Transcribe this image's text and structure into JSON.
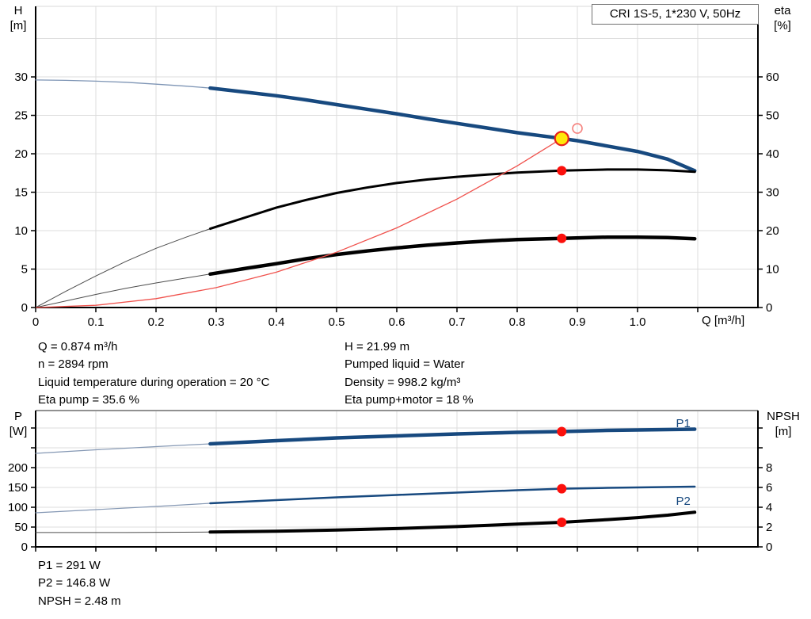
{
  "info_top_left": [
    "Q = 0.874 m³/h",
    "n = 2894 rpm",
    "Liquid temperature during operation = 20 °C",
    "Eta pump = 35.6 %"
  ],
  "info_top_right": [
    "H = 21.99 m",
    "Pumped liquid = Water",
    "Density = 998.2 kg/m³",
    "Eta pump+motor = 18 %"
  ],
  "info_bottom": [
    "P1 = 291 W",
    "P2 = 146.8 W",
    "NPSH = 2.48 m"
  ],
  "colors": {
    "curve_blue": "#17497F",
    "curve_black": "#000000",
    "system_red": "#F0524D",
    "dot_red": "#FB100C",
    "duty_yellow": "#FFE70A",
    "duty_ring_red": "#E8211B",
    "grid": "#DCDCDC",
    "axis": "#000000"
  },
  "chart_data": [
    {
      "type": "line",
      "title": "CRI 1S-5, 1*230 V, 50Hz",
      "x_axis": {
        "label": "Q [m³/h]",
        "lim": [
          0,
          1.2
        ],
        "tick_positions": [
          0,
          0.1,
          0.2,
          0.3,
          0.4,
          0.5,
          0.6,
          0.7,
          0.8,
          0.9,
          1.0,
          1.1
        ],
        "tick_labels": [
          "0",
          "0.1",
          "0.2",
          "0.3",
          "0.4",
          "0.5",
          "0.6",
          "0.7",
          "0.8",
          "0.9",
          "1.0"
        ]
      },
      "left_axis": {
        "name": "H",
        "unit": "[m]",
        "lim": [
          0,
          39.18
        ],
        "grid": [
          5,
          10,
          15,
          20,
          25,
          30,
          35
        ],
        "tick_positions": [
          0,
          5,
          10,
          15,
          20,
          25,
          30
        ],
        "tick_labels": [
          "0",
          "5",
          "10",
          "15",
          "20",
          "25",
          "30"
        ]
      },
      "right_axis": {
        "name": "eta",
        "unit": "[%]",
        "lim": [
          0,
          78.35
        ],
        "tick_positions": [
          0,
          10,
          20,
          30,
          40,
          50,
          60
        ],
        "tick_labels": [
          "0",
          "10",
          "20",
          "30",
          "40",
          "50",
          "60"
        ]
      },
      "series": [
        {
          "id": "head-curve",
          "axis": "left",
          "color": "#17497F",
          "width": 4.5,
          "thin_until": 0.29,
          "thin_color": "#7E95B5",
          "thin_width": 1.3,
          "points": [
            [
              0,
              29.6
            ],
            [
              0.05,
              29.55
            ],
            [
              0.1,
              29.45
            ],
            [
              0.15,
              29.3
            ],
            [
              0.2,
              29.05
            ],
            [
              0.25,
              28.8
            ],
            [
              0.29,
              28.55
            ],
            [
              0.35,
              28.0
            ],
            [
              0.4,
              27.55
            ],
            [
              0.45,
              27.0
            ],
            [
              0.5,
              26.4
            ],
            [
              0.55,
              25.8
            ],
            [
              0.6,
              25.2
            ],
            [
              0.65,
              24.55
            ],
            [
              0.7,
              23.95
            ],
            [
              0.75,
              23.35
            ],
            [
              0.8,
              22.75
            ],
            [
              0.874,
              21.99
            ],
            [
              0.9,
              21.7
            ],
            [
              0.95,
              21.0
            ],
            [
              1.0,
              20.3
            ],
            [
              1.05,
              19.3
            ],
            [
              1.095,
              17.8
            ]
          ]
        },
        {
          "id": "eta-pump-curve",
          "axis": "right",
          "color": "#000000",
          "width": 3,
          "thin_until": 0.29,
          "thin_color": "#4D4D4D",
          "thin_width": 1,
          "points": [
            [
              0,
              0
            ],
            [
              0.05,
              4.2
            ],
            [
              0.1,
              8.2
            ],
            [
              0.15,
              12
            ],
            [
              0.2,
              15.4
            ],
            [
              0.25,
              18.3
            ],
            [
              0.29,
              20.5
            ],
            [
              0.35,
              23.5
            ],
            [
              0.4,
              26
            ],
            [
              0.45,
              28
            ],
            [
              0.5,
              29.8
            ],
            [
              0.55,
              31.2
            ],
            [
              0.6,
              32.4
            ],
            [
              0.65,
              33.3
            ],
            [
              0.7,
              34
            ],
            [
              0.75,
              34.6
            ],
            [
              0.8,
              35.1
            ],
            [
              0.874,
              35.6
            ],
            [
              0.95,
              35.9
            ],
            [
              1.0,
              35.9
            ],
            [
              1.05,
              35.7
            ],
            [
              1.095,
              35.3
            ]
          ]
        },
        {
          "id": "eta-pump-motor-curve",
          "axis": "right",
          "color": "#000000",
          "width": 4.5,
          "thin_until": 0.29,
          "thin_color": "#4D4D4D",
          "thin_width": 1,
          "points": [
            [
              0,
              0
            ],
            [
              0.05,
              1.7
            ],
            [
              0.1,
              3.4
            ],
            [
              0.15,
              5.0
            ],
            [
              0.2,
              6.4
            ],
            [
              0.25,
              7.7
            ],
            [
              0.29,
              8.7
            ],
            [
              0.35,
              10.2
            ],
            [
              0.4,
              11.4
            ],
            [
              0.45,
              12.7
            ],
            [
              0.5,
              13.8
            ],
            [
              0.55,
              14.7
            ],
            [
              0.6,
              15.5
            ],
            [
              0.65,
              16.2
            ],
            [
              0.7,
              16.8
            ],
            [
              0.75,
              17.3
            ],
            [
              0.8,
              17.7
            ],
            [
              0.874,
              18.0
            ],
            [
              0.95,
              18.3
            ],
            [
              1.0,
              18.3
            ],
            [
              1.05,
              18.2
            ],
            [
              1.095,
              17.9
            ]
          ]
        },
        {
          "id": "system-curve",
          "axis": "left",
          "color": "#F0524D",
          "width": 1.3,
          "points": [
            [
              0,
              0
            ],
            [
              0.1,
              0.29
            ],
            [
              0.2,
              1.15
            ],
            [
              0.3,
              2.59
            ],
            [
              0.4,
              4.6
            ],
            [
              0.5,
              7.2
            ],
            [
              0.6,
              10.36
            ],
            [
              0.7,
              14.1
            ],
            [
              0.8,
              18.42
            ],
            [
              0.874,
              21.99
            ]
          ]
        }
      ],
      "markers": [
        {
          "type": "duty",
          "q": 0.874,
          "v": 21.99,
          "axis": "left",
          "name": "duty-point-marker"
        },
        {
          "type": "open",
          "q": 0.9,
          "v": 23.3,
          "axis": "left",
          "name": "rated-point-marker"
        },
        {
          "type": "dot",
          "q": 0.874,
          "v": 35.6,
          "axis": "right",
          "name": "eta-pump-point-marker"
        },
        {
          "type": "dot",
          "q": 0.874,
          "v": 18,
          "axis": "right",
          "name": "eta-pump-motor-point-marker"
        }
      ],
      "series_labels": []
    },
    {
      "type": "line",
      "title": "",
      "x_axis": {
        "label": "",
        "lim": [
          0,
          1.2
        ],
        "tick_positions": [
          0,
          0.1,
          0.2,
          0.3,
          0.4,
          0.5,
          0.6,
          0.7,
          0.8,
          0.9,
          1.0,
          1.1
        ],
        "tick_labels": []
      },
      "left_axis": {
        "name": "P",
        "unit": "[W]",
        "lim": [
          0,
          344
        ],
        "grid": [
          50,
          100,
          150,
          200,
          250,
          300
        ],
        "tick_positions": [
          0,
          50,
          100,
          150,
          200,
          250,
          300
        ],
        "tick_labels": [
          "0",
          "50",
          "100",
          "150",
          "200"
        ]
      },
      "right_axis": {
        "name": "NPSH",
        "unit": "[m]",
        "lim": [
          0,
          13.76
        ],
        "tick_positions": [
          0,
          2,
          4,
          6,
          8,
          10,
          12
        ],
        "tick_labels": [
          "0",
          "2",
          "4",
          "6",
          "8"
        ]
      },
      "series": [
        {
          "id": "p1-curve",
          "axis": "left",
          "color": "#17497F",
          "width": 4.5,
          "thin_until": 0.29,
          "thin_color": "#8598B4",
          "thin_width": 1.2,
          "points": [
            [
              0,
              236
            ],
            [
              0.1,
              245
            ],
            [
              0.2,
              253
            ],
            [
              0.29,
              260
            ],
            [
              0.4,
              268
            ],
            [
              0.5,
              275
            ],
            [
              0.6,
              280
            ],
            [
              0.7,
              285
            ],
            [
              0.8,
              289
            ],
            [
              0.874,
              291
            ],
            [
              0.95,
              294
            ],
            [
              1.0,
              295
            ],
            [
              1.095,
              297
            ]
          ]
        },
        {
          "id": "p2-curve",
          "axis": "left",
          "color": "#17497F",
          "width": 2.5,
          "thin_until": 0.29,
          "thin_color": "#8598B4",
          "thin_width": 1.2,
          "points": [
            [
              0,
              86
            ],
            [
              0.1,
              94
            ],
            [
              0.2,
              102
            ],
            [
              0.29,
              110
            ],
            [
              0.4,
              118
            ],
            [
              0.5,
              125
            ],
            [
              0.6,
              131
            ],
            [
              0.7,
              137
            ],
            [
              0.8,
              143
            ],
            [
              0.874,
              146.8
            ],
            [
              0.95,
              149
            ],
            [
              1.0,
              150
            ],
            [
              1.095,
              152
            ]
          ]
        },
        {
          "id": "npsh-curve",
          "axis": "right",
          "color": "#000000",
          "width": 4,
          "thin_until": 0.29,
          "thin_color": "#4D4D4D",
          "thin_width": 1,
          "points": [
            [
              0,
              1.45
            ],
            [
              0.15,
              1.45
            ],
            [
              0.29,
              1.5
            ],
            [
              0.4,
              1.58
            ],
            [
              0.5,
              1.7
            ],
            [
              0.6,
              1.85
            ],
            [
              0.7,
              2.05
            ],
            [
              0.8,
              2.3
            ],
            [
              0.874,
              2.48
            ],
            [
              0.95,
              2.75
            ],
            [
              1.0,
              2.95
            ],
            [
              1.05,
              3.2
            ],
            [
              1.095,
              3.5
            ]
          ]
        }
      ],
      "markers": [
        {
          "type": "dot",
          "q": 0.874,
          "v": 291,
          "axis": "left",
          "name": "p1-point-marker"
        },
        {
          "type": "dot",
          "q": 0.874,
          "v": 146.8,
          "axis": "left",
          "name": "p2-point-marker"
        },
        {
          "type": "dot",
          "q": 0.874,
          "v": 2.48,
          "axis": "right",
          "name": "npsh-point-marker"
        }
      ],
      "series_labels": [
        {
          "text": "P1",
          "q": 1.088,
          "v": 302,
          "axis": "left",
          "anchor": "end",
          "color": "#17497F"
        },
        {
          "text": "P2",
          "q": 1.088,
          "v": 106,
          "axis": "left",
          "anchor": "end",
          "color": "#17497F"
        }
      ]
    }
  ]
}
